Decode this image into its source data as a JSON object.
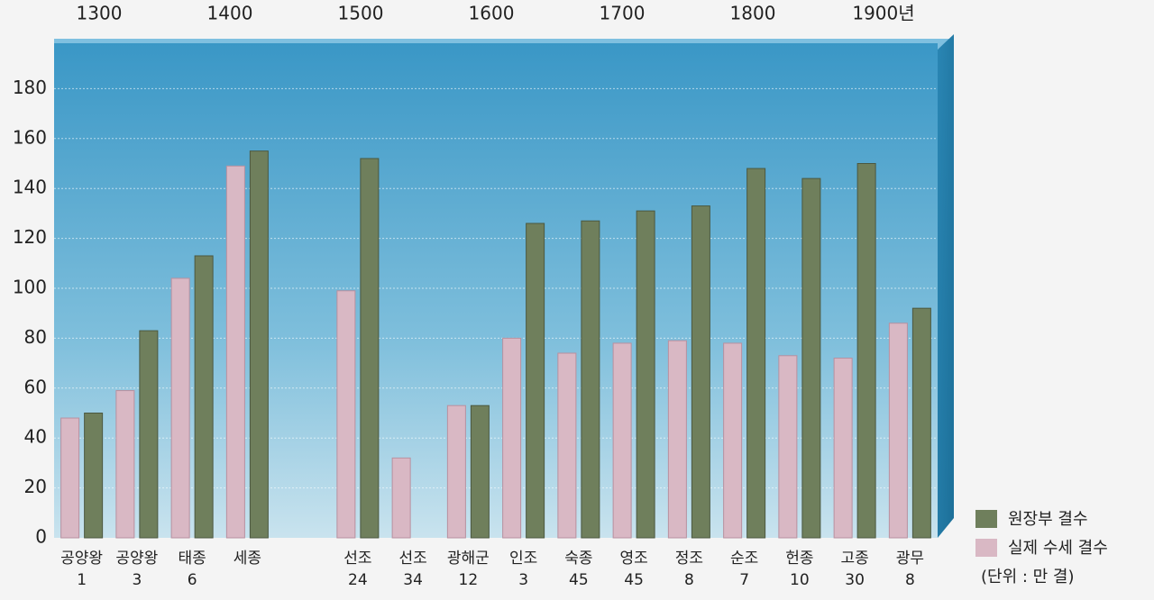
{
  "chart_data": {
    "type": "bar",
    "top_axis_ticks": [
      1300,
      1400,
      1500,
      1600,
      1700,
      1800,
      {
        "value": 1900,
        "label": "1900년"
      }
    ],
    "categories": [
      [
        "공양왕",
        "1"
      ],
      [
        "공양왕",
        "3"
      ],
      [
        "태종",
        "6"
      ],
      [
        "세종"
      ],
      null,
      [
        "선조",
        "24"
      ],
      [
        "선조",
        "34"
      ],
      [
        "광해군",
        "12"
      ],
      [
        "인조",
        "3"
      ],
      [
        "숙종",
        "45"
      ],
      [
        "영조",
        "45"
      ],
      [
        "정조",
        "8"
      ],
      [
        "순조",
        "7"
      ],
      [
        "헌종",
        "10"
      ],
      [
        "고종",
        "30"
      ],
      [
        "광무",
        "8"
      ]
    ],
    "series": [
      {
        "name": "원장부 결수",
        "color": "#6f7f5c",
        "values": [
          50,
          83,
          113,
          155,
          null,
          152,
          null,
          53,
          126,
          127,
          131,
          133,
          148,
          144,
          150,
          92
        ]
      },
      {
        "name": "실제 수세 결수",
        "color": "#d9b8c4",
        "values": [
          48,
          59,
          104,
          149,
          null,
          99,
          32,
          53,
          80,
          74,
          78,
          79,
          78,
          73,
          72,
          86
        ]
      }
    ],
    "unit_note": "(단위 : 만 결)",
    "ylim": [
      0,
      200
    ],
    "yticks": [
      0,
      20,
      40,
      60,
      80,
      100,
      120,
      140,
      160,
      180
    ],
    "grid": true
  }
}
